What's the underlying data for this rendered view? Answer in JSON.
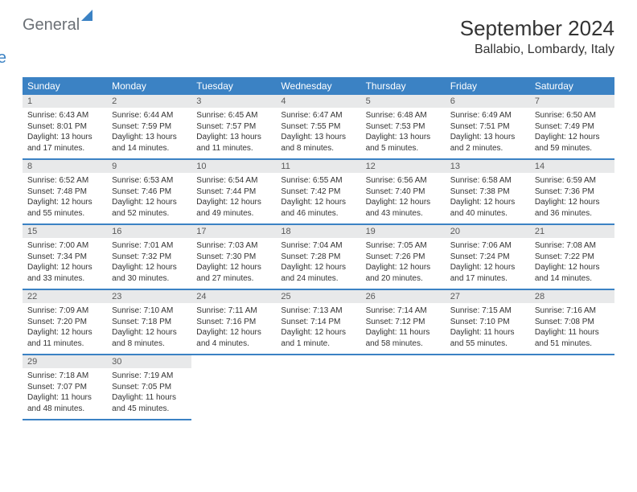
{
  "logo": {
    "general": "General",
    "blue": "Blue"
  },
  "title": "September 2024",
  "location": "Ballabio, Lombardy, Italy",
  "weekdays": [
    "Sunday",
    "Monday",
    "Tuesday",
    "Wednesday",
    "Thursday",
    "Friday",
    "Saturday"
  ],
  "colors": {
    "header_bg": "#3b82c4",
    "header_text": "#ffffff",
    "daynum_bg": "#e8e9ea",
    "border": "#3b82c4",
    "logo_gray": "#6b7076",
    "logo_blue": "#3b82c4"
  },
  "days": [
    {
      "n": "1",
      "sr": "6:43 AM",
      "ss": "8:01 PM",
      "dl": "13 hours and 17 minutes."
    },
    {
      "n": "2",
      "sr": "6:44 AM",
      "ss": "7:59 PM",
      "dl": "13 hours and 14 minutes."
    },
    {
      "n": "3",
      "sr": "6:45 AM",
      "ss": "7:57 PM",
      "dl": "13 hours and 11 minutes."
    },
    {
      "n": "4",
      "sr": "6:47 AM",
      "ss": "7:55 PM",
      "dl": "13 hours and 8 minutes."
    },
    {
      "n": "5",
      "sr": "6:48 AM",
      "ss": "7:53 PM",
      "dl": "13 hours and 5 minutes."
    },
    {
      "n": "6",
      "sr": "6:49 AM",
      "ss": "7:51 PM",
      "dl": "13 hours and 2 minutes."
    },
    {
      "n": "7",
      "sr": "6:50 AM",
      "ss": "7:49 PM",
      "dl": "12 hours and 59 minutes."
    },
    {
      "n": "8",
      "sr": "6:52 AM",
      "ss": "7:48 PM",
      "dl": "12 hours and 55 minutes."
    },
    {
      "n": "9",
      "sr": "6:53 AM",
      "ss": "7:46 PM",
      "dl": "12 hours and 52 minutes."
    },
    {
      "n": "10",
      "sr": "6:54 AM",
      "ss": "7:44 PM",
      "dl": "12 hours and 49 minutes."
    },
    {
      "n": "11",
      "sr": "6:55 AM",
      "ss": "7:42 PM",
      "dl": "12 hours and 46 minutes."
    },
    {
      "n": "12",
      "sr": "6:56 AM",
      "ss": "7:40 PM",
      "dl": "12 hours and 43 minutes."
    },
    {
      "n": "13",
      "sr": "6:58 AM",
      "ss": "7:38 PM",
      "dl": "12 hours and 40 minutes."
    },
    {
      "n": "14",
      "sr": "6:59 AM",
      "ss": "7:36 PM",
      "dl": "12 hours and 36 minutes."
    },
    {
      "n": "15",
      "sr": "7:00 AM",
      "ss": "7:34 PM",
      "dl": "12 hours and 33 minutes."
    },
    {
      "n": "16",
      "sr": "7:01 AM",
      "ss": "7:32 PM",
      "dl": "12 hours and 30 minutes."
    },
    {
      "n": "17",
      "sr": "7:03 AM",
      "ss": "7:30 PM",
      "dl": "12 hours and 27 minutes."
    },
    {
      "n": "18",
      "sr": "7:04 AM",
      "ss": "7:28 PM",
      "dl": "12 hours and 24 minutes."
    },
    {
      "n": "19",
      "sr": "7:05 AM",
      "ss": "7:26 PM",
      "dl": "12 hours and 20 minutes."
    },
    {
      "n": "20",
      "sr": "7:06 AM",
      "ss": "7:24 PM",
      "dl": "12 hours and 17 minutes."
    },
    {
      "n": "21",
      "sr": "7:08 AM",
      "ss": "7:22 PM",
      "dl": "12 hours and 14 minutes."
    },
    {
      "n": "22",
      "sr": "7:09 AM",
      "ss": "7:20 PM",
      "dl": "12 hours and 11 minutes."
    },
    {
      "n": "23",
      "sr": "7:10 AM",
      "ss": "7:18 PM",
      "dl": "12 hours and 8 minutes."
    },
    {
      "n": "24",
      "sr": "7:11 AM",
      "ss": "7:16 PM",
      "dl": "12 hours and 4 minutes."
    },
    {
      "n": "25",
      "sr": "7:13 AM",
      "ss": "7:14 PM",
      "dl": "12 hours and 1 minute."
    },
    {
      "n": "26",
      "sr": "7:14 AM",
      "ss": "7:12 PM",
      "dl": "11 hours and 58 minutes."
    },
    {
      "n": "27",
      "sr": "7:15 AM",
      "ss": "7:10 PM",
      "dl": "11 hours and 55 minutes."
    },
    {
      "n": "28",
      "sr": "7:16 AM",
      "ss": "7:08 PM",
      "dl": "11 hours and 51 minutes."
    },
    {
      "n": "29",
      "sr": "7:18 AM",
      "ss": "7:07 PM",
      "dl": "11 hours and 48 minutes."
    },
    {
      "n": "30",
      "sr": "7:19 AM",
      "ss": "7:05 PM",
      "dl": "11 hours and 45 minutes."
    }
  ],
  "labels": {
    "sunrise": "Sunrise:",
    "sunset": "Sunset:",
    "daylight": "Daylight:"
  }
}
